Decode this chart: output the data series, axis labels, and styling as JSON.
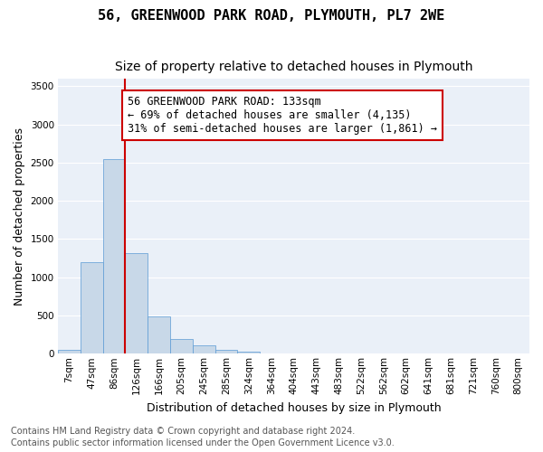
{
  "title_line1": "56, GREENWOOD PARK ROAD, PLYMOUTH, PL7 2WE",
  "title_line2": "Size of property relative to detached houses in Plymouth",
  "xlabel": "Distribution of detached houses by size in Plymouth",
  "ylabel": "Number of detached properties",
  "bar_color": "#c8d8e8",
  "bar_edge_color": "#5b9bd5",
  "background_color": "#eaf0f8",
  "fig_background_color": "#ffffff",
  "grid_color": "#ffffff",
  "categories": [
    "7sqm",
    "47sqm",
    "86sqm",
    "126sqm",
    "166sqm",
    "205sqm",
    "245sqm",
    "285sqm",
    "324sqm",
    "364sqm",
    "404sqm",
    "443sqm",
    "483sqm",
    "522sqm",
    "562sqm",
    "602sqm",
    "641sqm",
    "681sqm",
    "721sqm",
    "760sqm",
    "800sqm"
  ],
  "values": [
    50,
    1200,
    2550,
    1310,
    490,
    195,
    110,
    45,
    25,
    8,
    5,
    5,
    5,
    0,
    0,
    0,
    0,
    0,
    0,
    0,
    0
  ],
  "ylim": [
    0,
    3600
  ],
  "yticks": [
    0,
    500,
    1000,
    1500,
    2000,
    2500,
    3000,
    3500
  ],
  "red_line_x": 2.5,
  "red_line_color": "#cc0000",
  "annotation_text": "56 GREENWOOD PARK ROAD: 133sqm\n← 69% of detached houses are smaller (4,135)\n31% of semi-detached houses are larger (1,861) →",
  "annotation_box_color": "#ffffff",
  "annotation_box_edge": "#cc0000",
  "footer_line1": "Contains HM Land Registry data © Crown copyright and database right 2024.",
  "footer_line2": "Contains public sector information licensed under the Open Government Licence v3.0.",
  "title_fontsize": 11,
  "subtitle_fontsize": 10,
  "axis_label_fontsize": 9,
  "tick_fontsize": 7.5,
  "annotation_fontsize": 8.5,
  "footer_fontsize": 7
}
